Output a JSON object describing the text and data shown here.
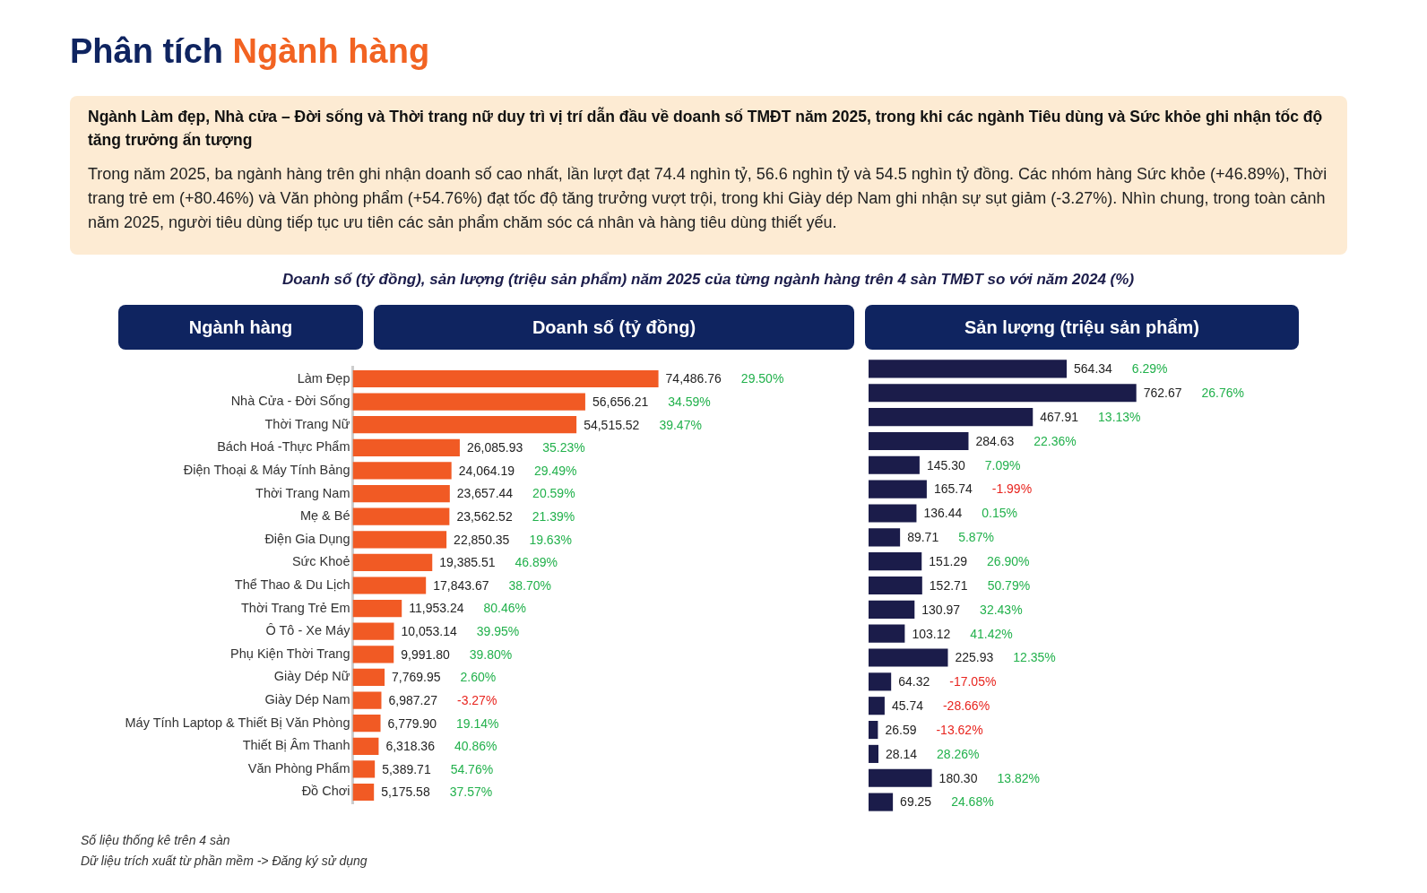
{
  "chart_data": [
    {
      "type": "other",
      "title": "Phân tích Ngành hàng",
      "subtitle": "Ngành Làm đẹp, Nhà cửa – Đời sống và Thời trang nữ duy trì vị trí dẫn đầu về doanh số TMĐT năm 2025, trong khi các ngành Tiêu dùng và Sức khỏe ghi nhận tốc độ tăng trưởng ấn tượng",
      "annotations": [
        "Trong năm 2025, ba ngành hàng trên ghi nhận doanh số cao nhất, lần lượt đạt 74.4 nghìn tỷ, 56.6 nghìn tỷ và 54.5 nghìn tỷ đồng. Các nhóm hàng Sức khỏe (+46.89%), Thời trang trẻ em (+80.46%) và Văn phòng phẩm (+54.76%) đạt tốc độ tăng trưởng vượt trội, trong khi Giày dép Nam ghi nhận sự sụt giảm (-3.27%). Nhìn chung, trong toàn cảnh năm 2025, người tiêu dùng tiếp tục ưu tiên các sản phẩm chăm sóc cá nhân và hàng tiêu dùng thiết yếu.",
        "Doanh số (tỷ đồng), sản lượng (triệu sản phẩm) năm 2025 của từng ngành hàng trên 4 sàn TMĐT so với năm 2024 (%)",
        "Số liệu thống kê trên 4 sàn",
        "Dữ liệu trích xuất từ phần mềm -> Đăng ký sử dụng"
      ]
    },
    {
      "type": "bar",
      "orientation": "horizontal",
      "title": "Doanh số (tỷ đồng)",
      "ylabel": "Ngành hàng",
      "tick_labels": "y",
      "color": "#f15a24",
      "categories": [
        "Làm Đẹp",
        "Nhà Cửa - Đời Sống",
        "Thời Trang Nữ",
        "Bách Hoá -Thực Phẩm",
        "Điện Thoại & Máy Tính Bảng",
        "Thời Trang Nam",
        "Mẹ & Bé",
        "Điện Gia Dụng",
        "Sức Khoẻ",
        "Thể Thao & Du Lịch",
        "Thời Trang Trẻ Em",
        "Ô Tô - Xe Máy",
        "Phụ Kiện Thời Trang",
        "Giày Dép Nữ",
        "Giày Dép Nam",
        "Máy Tính Laptop & Thiết Bị Văn Phòng",
        "Thiết Bị Âm Thanh",
        "Văn Phòng Phẩm",
        "Đồ Chơi"
      ],
      "values": [
        74486.76,
        56656.21,
        54515.52,
        26085.93,
        24064.19,
        23657.44,
        23562.52,
        22850.35,
        19385.51,
        17843.67,
        11953.24,
        10053.14,
        9991.8,
        7769.95,
        6987.27,
        6779.9,
        6318.36,
        5389.71,
        5175.58
      ],
      "value_labels": [
        "74,486.76",
        "56,656.21",
        "54,515.52",
        "26,085.93",
        "24,064.19",
        "23,657.44",
        "23,562.52",
        "22,850.35",
        "19,385.51",
        "17,843.67",
        "11,953.24",
        "10,053.14",
        "9,991.80",
        "7,769.95",
        "6,987.27",
        "6,779.90",
        "6,318.36",
        "5,389.71",
        "5,175.58"
      ],
      "annotations": [
        "29.50%",
        "34.59%",
        "39.47%",
        "35.23%",
        "29.49%",
        "20.59%",
        "21.39%",
        "19.63%",
        "46.89%",
        "38.70%",
        "80.46%",
        "39.95%",
        "39.80%",
        "2.60%",
        "-3.27%",
        "19.14%",
        "40.86%",
        "54.76%",
        "37.57%"
      ]
    },
    {
      "type": "bar",
      "orientation": "horizontal",
      "title": "Sản lượng (triệu sản phẩm)",
      "tick_labels": false,
      "color": "#1b1c4a",
      "categories": [
        null,
        null,
        null,
        null,
        null,
        null,
        null,
        null,
        null,
        null,
        null,
        null,
        null,
        null,
        null,
        null,
        null,
        null,
        null
      ],
      "values": [
        564.34,
        762.67,
        467.91,
        284.63,
        145.3,
        165.74,
        136.44,
        89.71,
        151.29,
        152.71,
        130.97,
        103.12,
        225.93,
        64.32,
        45.74,
        26.59,
        28.14,
        180.3,
        69.25
      ],
      "value_labels": [
        "564.34",
        "762.67",
        "467.91",
        "284.63",
        "145.30",
        "165.74",
        "136.44",
        "89.71",
        "151.29",
        "152.71",
        "130.97",
        "103.12",
        "225.93",
        "64.32",
        "45.74",
        "26.59",
        "28.14",
        "180.30",
        "69.25"
      ],
      "annotations": [
        "6.29%",
        "26.76%",
        "13.13%",
        "22.36%",
        "7.09%",
        "-1.99%",
        "0.15%",
        "5.87%",
        "26.90%",
        "50.79%",
        "32.43%",
        "41.42%",
        "12.35%",
        "-17.05%",
        "-28.66%",
        "-13.62%",
        "28.26%",
        "13.82%",
        "24.68%"
      ]
    }
  ]
}
